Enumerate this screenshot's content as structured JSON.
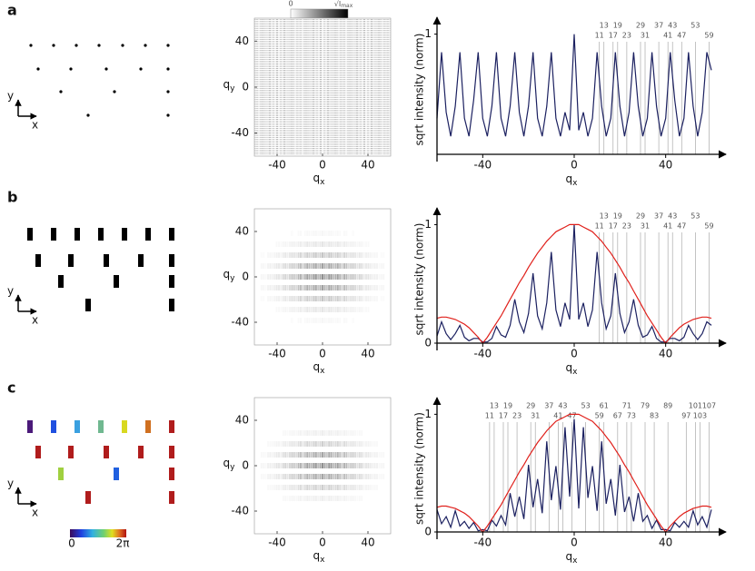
{
  "panel_labels": [
    "a",
    "b",
    "c"
  ],
  "lattice_axes": {
    "y": "y",
    "x": "x"
  },
  "colorbars": [
    {
      "min_label": "0",
      "max_label": "√I",
      "max_label_sub": "max"
    },
    {
      "min_label": "0",
      "max_label": "2π"
    }
  ],
  "chart_data": [
    {
      "type": "heatmap",
      "xlabel": "q",
      "xlabel_sub": "x",
      "ylabel": "q",
      "ylabel_sub": "y",
      "xlim": [
        -60,
        60
      ],
      "ylim": [
        -60,
        60
      ],
      "xticks": [
        -40,
        0,
        40
      ],
      "yticks": [
        -40,
        0,
        40
      ]
    },
    {
      "type": "line",
      "xlabel": "q",
      "xlabel_sub": "x",
      "ylabel": "sqrt intensity (norm)",
      "xlim": [
        -60,
        60
      ],
      "ylim": [
        0,
        1.08
      ],
      "xticks": [
        -40,
        0,
        40
      ],
      "yticks": [
        1
      ],
      "x": [
        -60,
        -58,
        -56,
        -54,
        -52,
        -50,
        -48,
        -46,
        -44,
        -42,
        -40,
        -38,
        -36,
        -34,
        -32,
        -30,
        -28,
        -26,
        -24,
        -22,
        -20,
        -18,
        -16,
        -14,
        -12,
        -10,
        -8,
        -6,
        -4,
        -2,
        0,
        2,
        4,
        6,
        8,
        10,
        12,
        14,
        16,
        18,
        20,
        22,
        24,
        26,
        28,
        30,
        32,
        34,
        36,
        38,
        40,
        42,
        44,
        46,
        48,
        50,
        52,
        54,
        56,
        58,
        60
      ],
      "series": [
        {
          "color": "#1b2060",
          "values": [
            0.3,
            0.85,
            0.35,
            0.15,
            0.4,
            0.85,
            0.3,
            0.15,
            0.45,
            0.85,
            0.3,
            0.15,
            0.4,
            0.85,
            0.3,
            0.15,
            0.4,
            0.85,
            0.35,
            0.15,
            0.4,
            0.85,
            0.3,
            0.15,
            0.4,
            0.85,
            0.3,
            0.15,
            0.35,
            0.2,
            1.0,
            0.2,
            0.35,
            0.15,
            0.3,
            0.85,
            0.4,
            0.15,
            0.3,
            0.85,
            0.4,
            0.15,
            0.35,
            0.85,
            0.4,
            0.15,
            0.3,
            0.85,
            0.4,
            0.15,
            0.3,
            0.85,
            0.45,
            0.15,
            0.3,
            0.85,
            0.4,
            0.15,
            0.35,
            0.85,
            0.7
          ]
        }
      ],
      "markers": [
        {
          "x": 11,
          "label": "11"
        },
        {
          "x": 13,
          "label": "13"
        },
        {
          "x": 17,
          "label": "17"
        },
        {
          "x": 19,
          "label": "19"
        },
        {
          "x": 23,
          "label": "23"
        },
        {
          "x": 29,
          "label": "29"
        },
        {
          "x": 31,
          "label": "31"
        },
        {
          "x": 37,
          "label": "37"
        },
        {
          "x": 41,
          "label": "41"
        },
        {
          "x": 43,
          "label": "43"
        },
        {
          "x": 47,
          "label": "47"
        },
        {
          "x": 53,
          "label": "53"
        },
        {
          "x": 59,
          "label": "59"
        }
      ]
    },
    {
      "type": "heatmap",
      "xlabel": "q",
      "xlabel_sub": "x",
      "ylabel": "q",
      "ylabel_sub": "y",
      "xlim": [
        -60,
        60
      ],
      "ylim": [
        -60,
        60
      ],
      "xticks": [
        -40,
        0,
        40
      ],
      "yticks": [
        -40,
        0,
        40
      ]
    },
    {
      "type": "line",
      "xlabel": "q",
      "xlabel_sub": "x",
      "ylabel": "sqrt intensity (norm)",
      "xlim": [
        -60,
        60
      ],
      "ylim": [
        0,
        1.08
      ],
      "xticks": [
        -40,
        0,
        40
      ],
      "yticks": [
        0,
        1
      ],
      "x": [
        -60,
        -58,
        -56,
        -54,
        -52,
        -50,
        -48,
        -46,
        -44,
        -42,
        -40,
        -38,
        -36,
        -34,
        -32,
        -30,
        -28,
        -26,
        -24,
        -22,
        -20,
        -18,
        -16,
        -14,
        -12,
        -10,
        -8,
        -6,
        -4,
        -2,
        0,
        2,
        4,
        6,
        8,
        10,
        12,
        14,
        16,
        18,
        20,
        22,
        24,
        26,
        28,
        30,
        32,
        34,
        36,
        38,
        40,
        42,
        44,
        46,
        48,
        50,
        52,
        54,
        56,
        58,
        60
      ],
      "series": [
        {
          "color": "#1b2060",
          "values": [
            0.06,
            0.18,
            0.08,
            0.03,
            0.08,
            0.15,
            0.05,
            0.02,
            0.04,
            0.04,
            0.01,
            0.01,
            0.04,
            0.14,
            0.07,
            0.05,
            0.15,
            0.37,
            0.18,
            0.09,
            0.25,
            0.59,
            0.23,
            0.12,
            0.34,
            0.77,
            0.28,
            0.14,
            0.34,
            0.2,
            1.0,
            0.2,
            0.34,
            0.14,
            0.28,
            0.77,
            0.34,
            0.12,
            0.23,
            0.59,
            0.25,
            0.09,
            0.18,
            0.37,
            0.15,
            0.05,
            0.07,
            0.14,
            0.04,
            0.01,
            0.01,
            0.04,
            0.04,
            0.02,
            0.05,
            0.15,
            0.08,
            0.03,
            0.08,
            0.18,
            0.15
          ]
        },
        {
          "color": "#e0201b",
          "values": [
            0.21,
            0.22,
            0.22,
            0.21,
            0.2,
            0.18,
            0.16,
            0.13,
            0.09,
            0.05,
            0,
            0.05,
            0.11,
            0.17,
            0.23,
            0.3,
            0.37,
            0.44,
            0.51,
            0.57,
            0.64,
            0.7,
            0.76,
            0.81,
            0.86,
            0.9,
            0.94,
            0.96,
            0.98,
            1.0,
            1.0,
            1.0,
            0.98,
            0.96,
            0.94,
            0.9,
            0.86,
            0.81,
            0.76,
            0.7,
            0.64,
            0.57,
            0.51,
            0.44,
            0.37,
            0.3,
            0.23,
            0.17,
            0.11,
            0.05,
            0,
            0.05,
            0.09,
            0.13,
            0.16,
            0.18,
            0.2,
            0.21,
            0.22,
            0.22,
            0.21
          ]
        }
      ],
      "markers": [
        {
          "x": 11,
          "label": "11"
        },
        {
          "x": 13,
          "label": "13"
        },
        {
          "x": 17,
          "label": "17"
        },
        {
          "x": 19,
          "label": "19"
        },
        {
          "x": 23,
          "label": "23"
        },
        {
          "x": 29,
          "label": "29"
        },
        {
          "x": 31,
          "label": "31"
        },
        {
          "x": 37,
          "label": "37"
        },
        {
          "x": 41,
          "label": "41"
        },
        {
          "x": 43,
          "label": "43"
        },
        {
          "x": 47,
          "label": "47"
        },
        {
          "x": 53,
          "label": "53"
        },
        {
          "x": 59,
          "label": "59"
        }
      ]
    },
    {
      "type": "heatmap",
      "xlabel": "q",
      "xlabel_sub": "x",
      "ylabel": "q",
      "ylabel_sub": "y",
      "xlim": [
        -60,
        60
      ],
      "ylim": [
        -60,
        60
      ],
      "xticks": [
        -40,
        0,
        40
      ],
      "yticks": [
        -40,
        0,
        40
      ]
    },
    {
      "type": "line",
      "xlabel": "q",
      "xlabel_sub": "x",
      "ylabel": "sqrt intensity (norm)",
      "xlim": [
        -60,
        60
      ],
      "ylim": [
        0,
        1.08
      ],
      "xticks": [
        -40,
        0,
        40
      ],
      "yticks": [
        0,
        1
      ],
      "x": [
        -60,
        -58,
        -56,
        -54,
        -52,
        -50,
        -48,
        -46,
        -44,
        -42,
        -40,
        -38,
        -36,
        -34,
        -32,
        -30,
        -28,
        -26,
        -24,
        -22,
        -20,
        -18,
        -16,
        -14,
        -12,
        -10,
        -8,
        -6,
        -4,
        -2,
        0,
        2,
        4,
        6,
        8,
        10,
        12,
        14,
        16,
        18,
        20,
        22,
        24,
        26,
        28,
        30,
        32,
        34,
        36,
        38,
        40,
        42,
        44,
        46,
        48,
        50,
        52,
        54,
        56,
        58,
        60
      ],
      "series": [
        {
          "color": "#1b2060",
          "values": [
            0.19,
            0.07,
            0.13,
            0.04,
            0.18,
            0.05,
            0.09,
            0.03,
            0.08,
            0.01,
            0.02,
            0.01,
            0.1,
            0.05,
            0.14,
            0.06,
            0.33,
            0.13,
            0.3,
            0.11,
            0.57,
            0.21,
            0.45,
            0.16,
            0.77,
            0.27,
            0.56,
            0.19,
            0.89,
            0.3,
            0.96,
            0.2,
            0.89,
            0.29,
            0.56,
            0.18,
            0.77,
            0.24,
            0.45,
            0.14,
            0.57,
            0.17,
            0.3,
            0.09,
            0.33,
            0.09,
            0.14,
            0.03,
            0.1,
            0.02,
            0.02,
            0.01,
            0.08,
            0.04,
            0.09,
            0.04,
            0.18,
            0.06,
            0.13,
            0.04,
            0.19
          ]
        },
        {
          "color": "#e0201b",
          "values": [
            0.21,
            0.22,
            0.22,
            0.21,
            0.2,
            0.18,
            0.16,
            0.13,
            0.09,
            0.05,
            0,
            0.05,
            0.11,
            0.17,
            0.23,
            0.3,
            0.37,
            0.44,
            0.51,
            0.57,
            0.64,
            0.7,
            0.76,
            0.81,
            0.86,
            0.9,
            0.94,
            0.96,
            0.98,
            1.0,
            1.0,
            1.0,
            0.98,
            0.96,
            0.94,
            0.9,
            0.86,
            0.81,
            0.76,
            0.7,
            0.64,
            0.57,
            0.51,
            0.44,
            0.37,
            0.3,
            0.23,
            0.17,
            0.11,
            0.05,
            0,
            0.05,
            0.09,
            0.13,
            0.16,
            0.18,
            0.2,
            0.21,
            0.22,
            0.22,
            0.21
          ]
        }
      ],
      "markers": [
        {
          "x": -37,
          "label": "11"
        },
        {
          "x": -35,
          "label": "13"
        },
        {
          "x": -31,
          "label": "17"
        },
        {
          "x": -29,
          "label": "19"
        },
        {
          "x": -25,
          "label": "23"
        },
        {
          "x": -19,
          "label": "29"
        },
        {
          "x": -17,
          "label": "31"
        },
        {
          "x": -11,
          "label": "37"
        },
        {
          "x": -7,
          "label": "41"
        },
        {
          "x": -5,
          "label": "43"
        },
        {
          "x": -1,
          "label": "47"
        },
        {
          "x": 5,
          "label": "53"
        },
        {
          "x": 11,
          "label": "59"
        },
        {
          "x": 13,
          "label": "61"
        },
        {
          "x": 19,
          "label": "67"
        },
        {
          "x": 23,
          "label": "71"
        },
        {
          "x": 25,
          "label": "73"
        },
        {
          "x": 31,
          "label": "79"
        },
        {
          "x": 35,
          "label": "83"
        },
        {
          "x": 41,
          "label": "89"
        },
        {
          "x": 49,
          "label": "97"
        },
        {
          "x": 53,
          "label": "101"
        },
        {
          "x": 55,
          "label": "103"
        },
        {
          "x": 59,
          "label": "107"
        }
      ]
    }
  ]
}
